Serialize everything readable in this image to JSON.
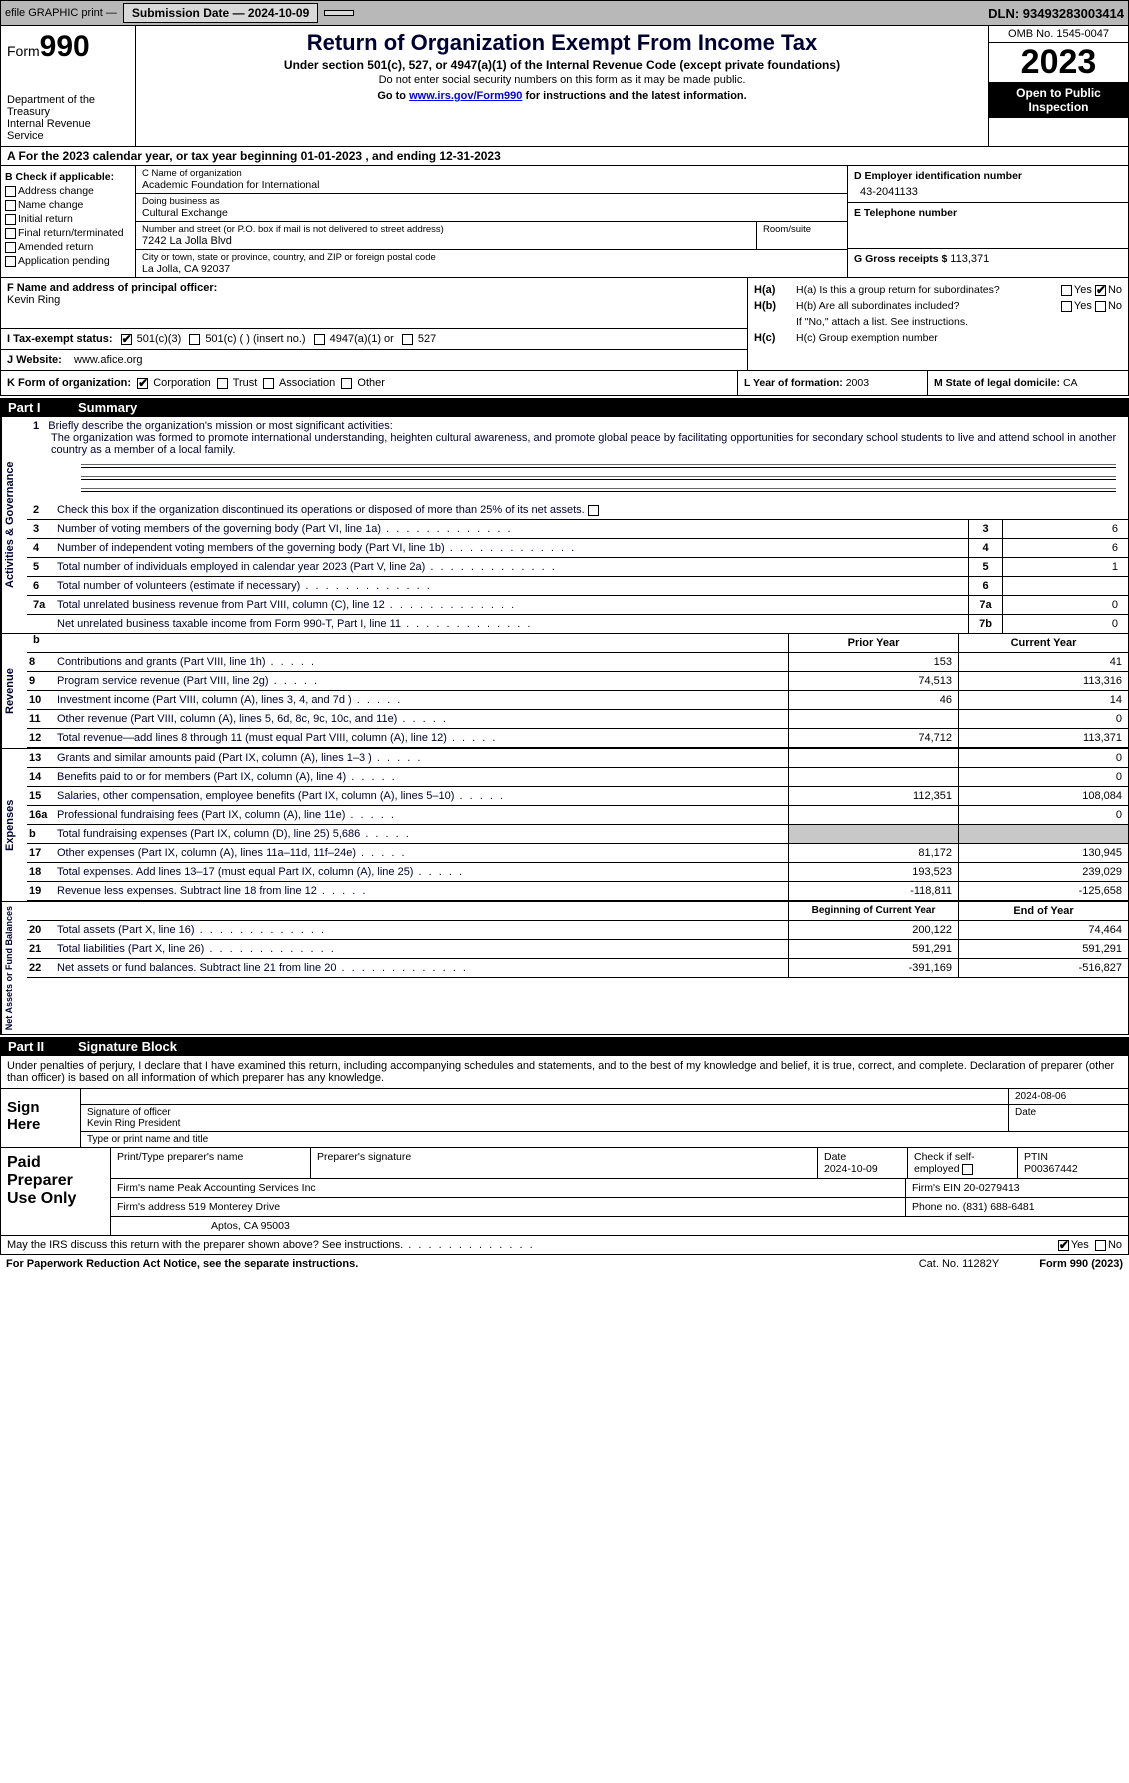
{
  "topbar": {
    "efile": "efile GRAPHIC print —",
    "submission_label": "Submission Date — 2024-10-09",
    "dln": "DLN: 93493283003414"
  },
  "header": {
    "form_prefix": "Form",
    "form_num": "990",
    "dept": "Department of the Treasury",
    "irs": "Internal Revenue Service",
    "title": "Return of Organization Exempt From Income Tax",
    "sub1": "Under section 501(c), 527, or 4947(a)(1) of the Internal Revenue Code (except private foundations)",
    "sub2": "Do not enter social security numbers on this form as it may be made public.",
    "goto_pre": "Go to ",
    "goto_link": "www.irs.gov/Form990",
    "goto_post": " for instructions and the latest information.",
    "omb": "OMB No. 1545-0047",
    "year": "2023",
    "open": "Open to Public Inspection"
  },
  "lineA": "A   For the 2023 calendar year, or tax year beginning 01-01-2023   , and ending 12-31-2023",
  "boxB": {
    "label": "B Check if applicable:",
    "items": [
      "Address change",
      "Name change",
      "Initial return",
      "Final return/terminated",
      "Amended return",
      "Application pending"
    ]
  },
  "boxC": {
    "name_lbl": "C Name of organization",
    "name": "Academic Foundation for International",
    "dba_lbl": "Doing business as",
    "dba": "Cultural Exchange",
    "street_lbl": "Number and street (or P.O. box if mail is not delivered to street address)",
    "street": "7242 La Jolla Blvd",
    "room_lbl": "Room/suite",
    "city_lbl": "City or town, state or province, country, and ZIP or foreign postal code",
    "city": "La Jolla, CA  92037"
  },
  "boxD": {
    "lbl": "D Employer identification number",
    "val": "43-2041133"
  },
  "boxE": {
    "lbl": "E Telephone number",
    "val": ""
  },
  "boxG": {
    "lbl": "G Gross receipts $ ",
    "val": "113,371"
  },
  "boxF": {
    "lbl": "F  Name and address of principal officer:",
    "val": "Kevin Ring"
  },
  "boxH": {
    "ha": "H(a)  Is this a group return for subordinates?",
    "hb": "H(b)  Are all subordinates included?",
    "hb2": "If \"No,\" attach a list. See instructions.",
    "hc": "H(c)  Group exemption number ",
    "yes": "Yes",
    "no": "No"
  },
  "boxI": {
    "lbl": "I     Tax-exempt status:",
    "o1": "501(c)(3)",
    "o2": "501(c) (  ) (insert no.)",
    "o3": "4947(a)(1) or",
    "o4": "527"
  },
  "boxJ": {
    "lbl": "J     Website: ",
    "val": "www.afice.org"
  },
  "boxK": {
    "lbl": "K Form of organization:",
    "o1": "Corporation",
    "o2": "Trust",
    "o3": "Association",
    "o4": "Other"
  },
  "boxL": {
    "lbl": "L Year of formation: ",
    "val": "2003"
  },
  "boxM": {
    "lbl": "M State of legal domicile: ",
    "val": "CA"
  },
  "part1": {
    "pt": "Part I",
    "ttl": "Summary"
  },
  "mission": {
    "n1": "1",
    "lbl": "Briefly describe the organization's mission or most significant activities:",
    "txt": "The organization was formed to promote international understanding, heighten cultural awareness, and promote global peace by facilitating opportunities for secondary school students to live and attend school in another country as a member of a local family."
  },
  "gov": {
    "side": "Activities & Governance",
    "l2": "Check this box       if the organization discontinued its operations or disposed of more than 25% of its net assets.",
    "l3": "Number of voting members of the governing body (Part VI, line 1a)",
    "l4": "Number of independent voting members of the governing body (Part VI, line 1b)",
    "l5": "Total number of individuals employed in calendar year 2023 (Part V, line 2a)",
    "l6": "Total number of volunteers (estimate if necessary)",
    "l7a": "Total unrelated business revenue from Part VIII, column (C), line 12",
    "l7b": "Net unrelated business taxable income from Form 990-T, Part I, line 11",
    "v3": "6",
    "v4": "6",
    "v5": "1",
    "v6": "",
    "v7a": "0",
    "v7b": "0"
  },
  "rev": {
    "side": "Revenue",
    "prior": "Prior Year",
    "current": "Current Year",
    "rows": [
      {
        "n": "8",
        "t": "Contributions and grants (Part VIII, line 1h)",
        "p": "153",
        "c": "41"
      },
      {
        "n": "9",
        "t": "Program service revenue (Part VIII, line 2g)",
        "p": "74,513",
        "c": "113,316"
      },
      {
        "n": "10",
        "t": "Investment income (Part VIII, column (A), lines 3, 4, and 7d )",
        "p": "46",
        "c": "14"
      },
      {
        "n": "11",
        "t": "Other revenue (Part VIII, column (A), lines 5, 6d, 8c, 9c, 10c, and 11e)",
        "p": "",
        "c": "0"
      },
      {
        "n": "12",
        "t": "Total revenue—add lines 8 through 11 (must equal Part VIII, column (A), line 12)",
        "p": "74,712",
        "c": "113,371"
      }
    ]
  },
  "exp": {
    "side": "Expenses",
    "rows": [
      {
        "n": "13",
        "t": "Grants and similar amounts paid (Part IX, column (A), lines 1–3 )",
        "p": "",
        "c": "0"
      },
      {
        "n": "14",
        "t": "Benefits paid to or for members (Part IX, column (A), line 4)",
        "p": "",
        "c": "0"
      },
      {
        "n": "15",
        "t": "Salaries, other compensation, employee benefits (Part IX, column (A), lines 5–10)",
        "p": "112,351",
        "c": "108,084"
      },
      {
        "n": "16a",
        "t": "Professional fundraising fees (Part IX, column (A), line 11e)",
        "p": "",
        "c": "0"
      },
      {
        "n": "b",
        "t": "Total fundraising expenses (Part IX, column (D), line 25) 5,686",
        "p": "SHADE",
        "c": "SHADE"
      },
      {
        "n": "17",
        "t": "Other expenses (Part IX, column (A), lines 11a–11d, 11f–24e)",
        "p": "81,172",
        "c": "130,945"
      },
      {
        "n": "18",
        "t": "Total expenses. Add lines 13–17 (must equal Part IX, column (A), line 25)",
        "p": "193,523",
        "c": "239,029"
      },
      {
        "n": "19",
        "t": "Revenue less expenses. Subtract line 18 from line 12",
        "p": "-118,811",
        "c": "-125,658"
      }
    ]
  },
  "net": {
    "side": "Net Assets or Fund Balances",
    "begin": "Beginning of Current Year",
    "end": "End of Year",
    "rows": [
      {
        "n": "20",
        "t": "Total assets (Part X, line 16)",
        "p": "200,122",
        "c": "74,464"
      },
      {
        "n": "21",
        "t": "Total liabilities (Part X, line 26)",
        "p": "591,291",
        "c": "591,291"
      },
      {
        "n": "22",
        "t": "Net assets or fund balances. Subtract line 21 from line 20",
        "p": "-391,169",
        "c": "-516,827"
      }
    ]
  },
  "part2": {
    "pt": "Part II",
    "ttl": "Signature Block"
  },
  "sig": {
    "para": "Under penalties of perjury, I declare that I have examined this return, including accompanying schedules and statements, and to the best of my knowledge and belief, it is true, correct, and complete. Declaration of preparer (other than officer) is based on all information of which preparer has any knowledge.",
    "sign_here": "Sign Here",
    "sig_officer": "Signature of officer",
    "name": "Kevin Ring  President",
    "type_lbl": "Type or print name and title",
    "date": "2024-08-06",
    "date_lbl": "Date"
  },
  "paid": {
    "lbl": "Paid Preparer Use Only",
    "r1": {
      "c1": "Print/Type preparer's name",
      "c2": "Preparer's signature",
      "c3": "Date\n2024-10-09",
      "c4": "Check       if self-employed",
      "c5": "PTIN\nP00367442"
    },
    "r2": {
      "c1": "Firm's name      Peak Accounting Services Inc",
      "c2": "Firm's EIN  20-0279413"
    },
    "r3": {
      "c1": "Firm's address 519 Monterey Drive",
      "c2": "Phone no. (831) 688-6481"
    },
    "r4": "Aptos, CA  95003"
  },
  "discuss": {
    "txt": "May the IRS discuss this return with the preparer shown above? See instructions.",
    "yes": "Yes",
    "no": "No"
  },
  "footer": {
    "l": "For Paperwork Reduction Act Notice, see the separate instructions.",
    "m": "Cat. No. 11282Y",
    "r": "Form 990 (2023)"
  }
}
